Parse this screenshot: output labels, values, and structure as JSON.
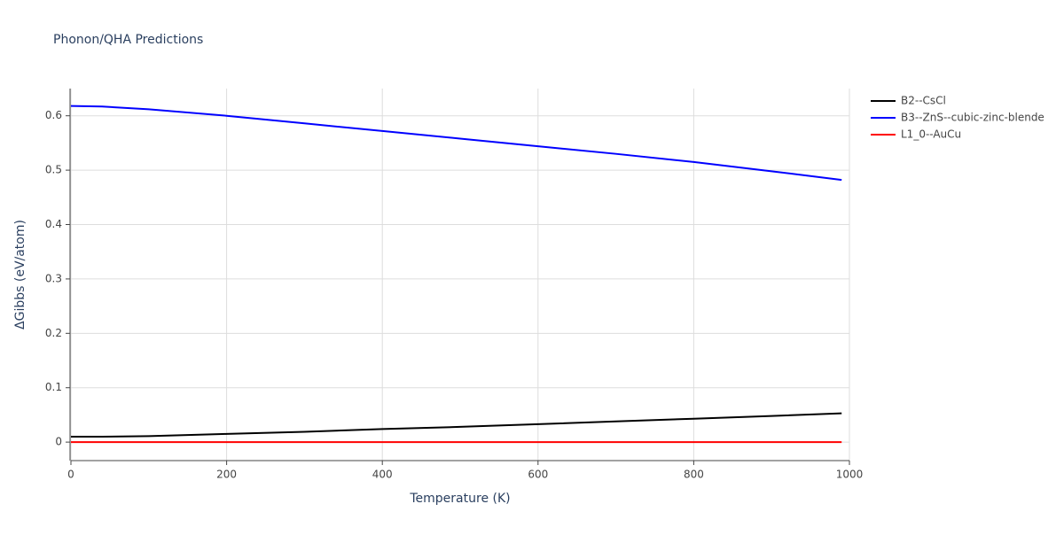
{
  "chart_data": {
    "type": "line",
    "title": "Phonon/QHA Predictions",
    "x_label": "Temperature (K)",
    "y_label": "ΔGibbs (eV/atom)",
    "x": [
      0,
      40,
      100,
      200,
      300,
      400,
      500,
      600,
      700,
      800,
      900,
      990
    ],
    "series": [
      {
        "name": "B2--CsCl",
        "color": "#000000",
        "values": [
          0.01,
          0.01,
          0.011,
          0.015,
          0.019,
          0.024,
          0.028,
          0.033,
          0.038,
          0.043,
          0.048,
          0.053
        ]
      },
      {
        "name": "B3--ZnS--cubic-zinc-blende",
        "color": "#0000ff",
        "values": [
          0.618,
          0.617,
          0.612,
          0.6,
          0.586,
          0.572,
          0.558,
          0.544,
          0.53,
          0.515,
          0.498,
          0.482
        ]
      },
      {
        "name": "L1_0--AuCu",
        "color": "#ff0000",
        "values": [
          0,
          0,
          0,
          0,
          0,
          0,
          0,
          0,
          0,
          0,
          0,
          0
        ]
      }
    ],
    "xlim": [
      0,
      1000
    ],
    "xticks": [
      0,
      200,
      400,
      600,
      800,
      1000
    ],
    "ylim": [
      -0.034,
      0.65
    ],
    "yticks": [
      0,
      0.1,
      0.2,
      0.3,
      0.4,
      0.5,
      0.6
    ],
    "grid": true,
    "legend": "right"
  }
}
